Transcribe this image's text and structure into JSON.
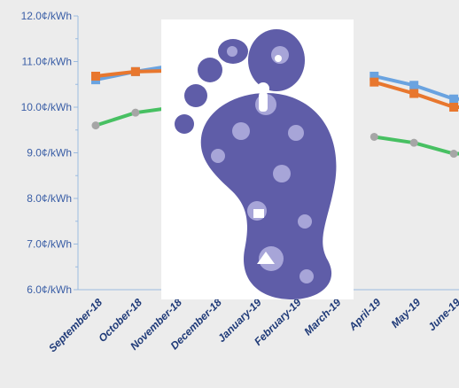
{
  "chart_data": {
    "type": "line",
    "categories": [
      "September-18",
      "October-18",
      "November-18",
      "December-18",
      "January-19",
      "February-19",
      "March-19",
      "April-19",
      "May-19",
      "June-19"
    ],
    "ylim": [
      6.0,
      12.0
    ],
    "y_ticks": [
      {
        "value": 12.0,
        "label": "12.0¢/kWh"
      },
      {
        "value": 11.0,
        "label": "11.0¢/kWh"
      },
      {
        "value": 10.0,
        "label": "10.0¢/kWh"
      },
      {
        "value": 9.0,
        "label": "9.0¢/kWh"
      },
      {
        "value": 8.0,
        "label": "8.0¢/kWh"
      },
      {
        "value": 7.0,
        "label": "7.0¢/kWh"
      },
      {
        "value": 6.0,
        "label": "6.0¢/kWh"
      }
    ],
    "grid": false,
    "series": [
      {
        "color": "#6aa3e0",
        "marker": "square",
        "values": [
          10.6,
          10.78,
          10.92,
          null,
          null,
          null,
          null,
          10.68,
          10.48,
          10.18
        ]
      },
      {
        "color": "#e8772e",
        "marker": "square",
        "values": [
          10.68,
          10.78,
          10.8,
          null,
          null,
          null,
          null,
          10.55,
          10.3,
          10.0
        ]
      },
      {
        "color": "#47c062",
        "marker": "circle",
        "values": [
          9.6,
          9.88,
          10.0,
          null,
          null,
          null,
          null,
          9.35,
          9.22,
          8.98
        ]
      }
    ],
    "overlay_image": "footprint made of eco icons"
  }
}
